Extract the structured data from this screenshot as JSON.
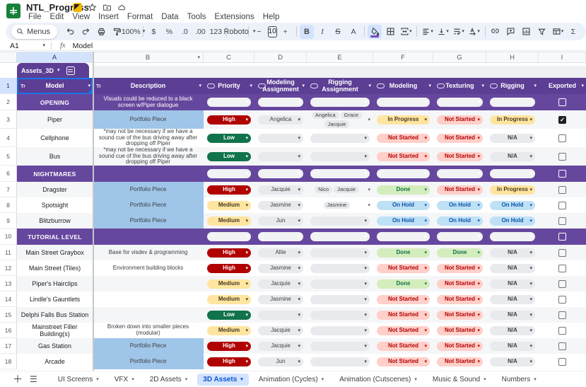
{
  "titlebar": {
    "title": "NTL_Progress",
    "menus": [
      "File",
      "Edit",
      "View",
      "Insert",
      "Format",
      "Data",
      "Tools",
      "Extensions",
      "Help"
    ]
  },
  "toolbar": {
    "menus_label": "Menus",
    "zoom": "100%",
    "currency": "$",
    "percent": "%",
    "decrease_decimals": ".0",
    "increase_decimals": ".00",
    "number_format": "123",
    "font": "Roboto",
    "minus": "−",
    "font_size": "10",
    "plus": "+",
    "bold": "B",
    "italic": "I",
    "strikethrough": "S",
    "text_color": "A",
    "functions": "Σ"
  },
  "formula_bar": {
    "cell_ref": "A1",
    "formula": "Model"
  },
  "column_letters": [
    "A",
    "B",
    "C",
    "D",
    "E",
    "F",
    "G",
    "H",
    "I"
  ],
  "table": {
    "name": "Assets_3D",
    "text_type_icon": "Tr",
    "columns": [
      {
        "letter": "A",
        "label": "Model",
        "type": "text"
      },
      {
        "letter": "B",
        "label": "Description",
        "type": "text"
      },
      {
        "letter": "C",
        "label": "Priority",
        "type": "dropdown"
      },
      {
        "letter": "D",
        "label": "Modeling Assignment",
        "type": "dropdown"
      },
      {
        "letter": "E",
        "label": "Rigging Assignment",
        "type": "dropdown"
      },
      {
        "letter": "F",
        "label": "Modeling",
        "type": "dropdown"
      },
      {
        "letter": "G",
        "label": "Texturing",
        "type": "dropdown"
      },
      {
        "letter": "H",
        "label": "Rigging",
        "type": "dropdown"
      },
      {
        "letter": "I",
        "label": "Exported",
        "type": "checkbox"
      }
    ],
    "rows": [
      {
        "n": 2,
        "section": true,
        "model": "OPENING",
        "description": "Visuals could be reduced to a black screen w/Piper dialogue",
        "exported": false
      },
      {
        "n": 3,
        "shade": true,
        "model": "Piper",
        "description": "Portfolio Piece",
        "desc_highlight": true,
        "priority": {
          "label": "High",
          "style": "high"
        },
        "modeling_assignment": "Angelica",
        "rigging_assignment": [
          "Angelica",
          "Grace",
          "Jacquie"
        ],
        "modeling": {
          "label": "In Progress",
          "style": "in_progress"
        },
        "texturing": {
          "label": "Not Started",
          "style": "not_started"
        },
        "rigging": {
          "label": "In Progress",
          "style": "in_progress"
        },
        "exported": true
      },
      {
        "n": 4,
        "model": "Cellphone",
        "description": "*may not be necessary if we have a sound cue of the bus driving away after dropping off Piper",
        "priority": {
          "label": "Low",
          "style": "low"
        },
        "modeling_assignment": "",
        "rigging_assignment": [],
        "modeling": {
          "label": "Not Started",
          "style": "not_started"
        },
        "texturing": {
          "label": "Not Started",
          "style": "not_started"
        },
        "rigging": {
          "label": "N/A",
          "style": "na"
        },
        "exported": false
      },
      {
        "n": 5,
        "shade": true,
        "model": "Bus",
        "description": "*may not be necessary if we have a sound cue of the bus driving away after dropping off Piper",
        "priority": {
          "label": "Low",
          "style": "low"
        },
        "modeling_assignment": "",
        "rigging_assignment": [],
        "modeling": {
          "label": "Not Started",
          "style": "not_started"
        },
        "texturing": {
          "label": "Not Started",
          "style": "not_started"
        },
        "rigging": {
          "label": "N/A",
          "style": "na"
        },
        "exported": false
      },
      {
        "n": 6,
        "section": true,
        "model": "NIGHTMARES",
        "description": "",
        "exported": false
      },
      {
        "n": 7,
        "shade": true,
        "model": "Dragster",
        "description": "Portfolio Piece",
        "desc_highlight": true,
        "priority": {
          "label": "High",
          "style": "high"
        },
        "modeling_assignment": "Jacquie",
        "rigging_assignment": [
          "Nico",
          "Jacquie"
        ],
        "modeling": {
          "label": "Done",
          "style": "done"
        },
        "texturing": {
          "label": "Not Started",
          "style": "not_started"
        },
        "rigging": {
          "label": "In Progress",
          "style": "in_progress"
        },
        "exported": false
      },
      {
        "n": 8,
        "model": "Spotsight",
        "description": "Portfolio Piece",
        "desc_highlight": true,
        "priority": {
          "label": "Medium",
          "style": "medium"
        },
        "modeling_assignment": "Jasmine",
        "rigging_assignment": [
          "Jasmine"
        ],
        "modeling": {
          "label": "On Hold",
          "style": "on_hold"
        },
        "texturing": {
          "label": "On Hold",
          "style": "on_hold"
        },
        "rigging": {
          "label": "On Hold",
          "style": "on_hold"
        },
        "exported": false
      },
      {
        "n": 9,
        "shade": true,
        "model": "Blitzburrow",
        "description": "Portfolio Piece",
        "desc_highlight": true,
        "priority": {
          "label": "Medium",
          "style": "medium"
        },
        "modeling_assignment": "Jun",
        "rigging_assignment": [],
        "modeling": {
          "label": "On Hold",
          "style": "on_hold"
        },
        "texturing": {
          "label": "On Hold",
          "style": "on_hold"
        },
        "rigging": {
          "label": "On Hold",
          "style": "on_hold"
        },
        "exported": false
      },
      {
        "n": 10,
        "section": true,
        "model": "TUTORIAL LEVEL",
        "description": "",
        "exported": false
      },
      {
        "n": 11,
        "shade": true,
        "model": "Main Street Graybox",
        "description": "Base for visdev & programming",
        "priority": {
          "label": "High",
          "style": "high"
        },
        "modeling_assignment": "Allie",
        "rigging_assignment": [],
        "modeling": {
          "label": "Done",
          "style": "done"
        },
        "texturing": {
          "label": "Done",
          "style": "done"
        },
        "rigging": {
          "label": "N/A",
          "style": "na"
        },
        "exported": false
      },
      {
        "n": 12,
        "model": "Main Street (Tiles)",
        "description": "Environment building blocks",
        "priority": {
          "label": "High",
          "style": "high"
        },
        "modeling_assignment": "Jasmine",
        "rigging_assignment": [],
        "modeling": {
          "label": "Not Started",
          "style": "not_started"
        },
        "texturing": {
          "label": "Not Started",
          "style": "not_started"
        },
        "rigging": {
          "label": "N/A",
          "style": "na"
        },
        "exported": false
      },
      {
        "n": 13,
        "shade": true,
        "model": "Piper's Hairclips",
        "description": "",
        "priority": {
          "label": "Medium",
          "style": "medium"
        },
        "modeling_assignment": "Jacquie",
        "rigging_assignment": [],
        "modeling": {
          "label": "Done",
          "style": "done"
        },
        "texturing": {
          "label": "Not Started",
          "style": "not_started"
        },
        "rigging": {
          "label": "N/A",
          "style": "na"
        },
        "exported": false
      },
      {
        "n": 14,
        "model": "Lindle's Gauntlets",
        "description": "",
        "priority": {
          "label": "Medium",
          "style": "medium"
        },
        "modeling_assignment": "Jasmine",
        "rigging_assignment": [],
        "modeling": {
          "label": "Not Started",
          "style": "not_started"
        },
        "texturing": {
          "label": "Not Started",
          "style": "not_started"
        },
        "rigging": {
          "label": "N/A",
          "style": "na"
        },
        "exported": false
      },
      {
        "n": 15,
        "shade": true,
        "model": "Delphi Falls Bus Station",
        "description": "",
        "priority": {
          "label": "Low",
          "style": "low"
        },
        "modeling_assignment": "",
        "rigging_assignment": [],
        "modeling": {
          "label": "Not Started",
          "style": "not_started"
        },
        "texturing": {
          "label": "Not Started",
          "style": "not_started"
        },
        "rigging": {
          "label": "N/A",
          "style": "na"
        },
        "exported": false
      },
      {
        "n": 16,
        "model": "Mainstreet Filler Building(s)",
        "description": "Broken down into smaller pieces (modular)",
        "priority": {
          "label": "Medium",
          "style": "medium"
        },
        "modeling_assignment": "Jacquie",
        "rigging_assignment": [],
        "modeling": {
          "label": "Not Started",
          "style": "not_started"
        },
        "texturing": {
          "label": "Not Started",
          "style": "not_started"
        },
        "rigging": {
          "label": "N/A",
          "style": "na"
        },
        "exported": false
      },
      {
        "n": 17,
        "shade": true,
        "model": "Gas Station",
        "description": "Portfolio Piece",
        "desc_highlight": true,
        "priority": {
          "label": "High",
          "style": "high"
        },
        "modeling_assignment": "Jacquie",
        "rigging_assignment": [],
        "modeling": {
          "label": "Not Started",
          "style": "not_started"
        },
        "texturing": {
          "label": "Not Started",
          "style": "not_started"
        },
        "rigging": {
          "label": "N/A",
          "style": "na"
        },
        "exported": false
      },
      {
        "n": 18,
        "model": "Arcade",
        "description": "Portfolio Piece",
        "desc_highlight": true,
        "priority": {
          "label": "High",
          "style": "high"
        },
        "modeling_assignment": "Jun",
        "rigging_assignment": [],
        "modeling": {
          "label": "Not Started",
          "style": "not_started"
        },
        "texturing": {
          "label": "Not Started",
          "style": "not_started"
        },
        "rigging": {
          "label": "N/A",
          "style": "na"
        },
        "exported": false
      }
    ]
  },
  "sheet_tabs": {
    "tabs": [
      {
        "label": "UI Screens",
        "active": false
      },
      {
        "label": "VFX",
        "active": false
      },
      {
        "label": "2D Assets",
        "active": false
      },
      {
        "label": "3D Assets",
        "active": true
      },
      {
        "label": "Animation (Cycles)",
        "active": false
      },
      {
        "label": "Animation (Cutscenes)",
        "active": false
      },
      {
        "label": "Music & Sound",
        "active": false
      },
      {
        "label": "Numbers",
        "active": false
      }
    ]
  },
  "colors": {
    "header_purple": "#5c3e94",
    "section_purple": "#66479e",
    "highlight_blue": "#9fc5e8",
    "selection_blue": "#1a73e8",
    "active_tab_bg": "#d3e3fd",
    "status": {
      "high": {
        "bg": "#b10202",
        "fg": "#ffffff"
      },
      "medium": {
        "bg": "#ffe5a0",
        "fg": "#473821"
      },
      "low": {
        "bg": "#11734b",
        "fg": "#ffffff"
      },
      "in_progress": {
        "bg": "#ffe5a0",
        "fg": "#473821"
      },
      "not_started": {
        "bg": "#ffcfc9",
        "fg": "#b10202"
      },
      "done": {
        "bg": "#d4edbc",
        "fg": "#11734b"
      },
      "on_hold": {
        "bg": "#bfe1f6",
        "fg": "#0a53a8"
      },
      "na": {
        "bg": "#e8eaed",
        "fg": "#3c4043"
      },
      "assign": {
        "bg": "#e9eaed",
        "fg": "#3c4043"
      }
    }
  }
}
